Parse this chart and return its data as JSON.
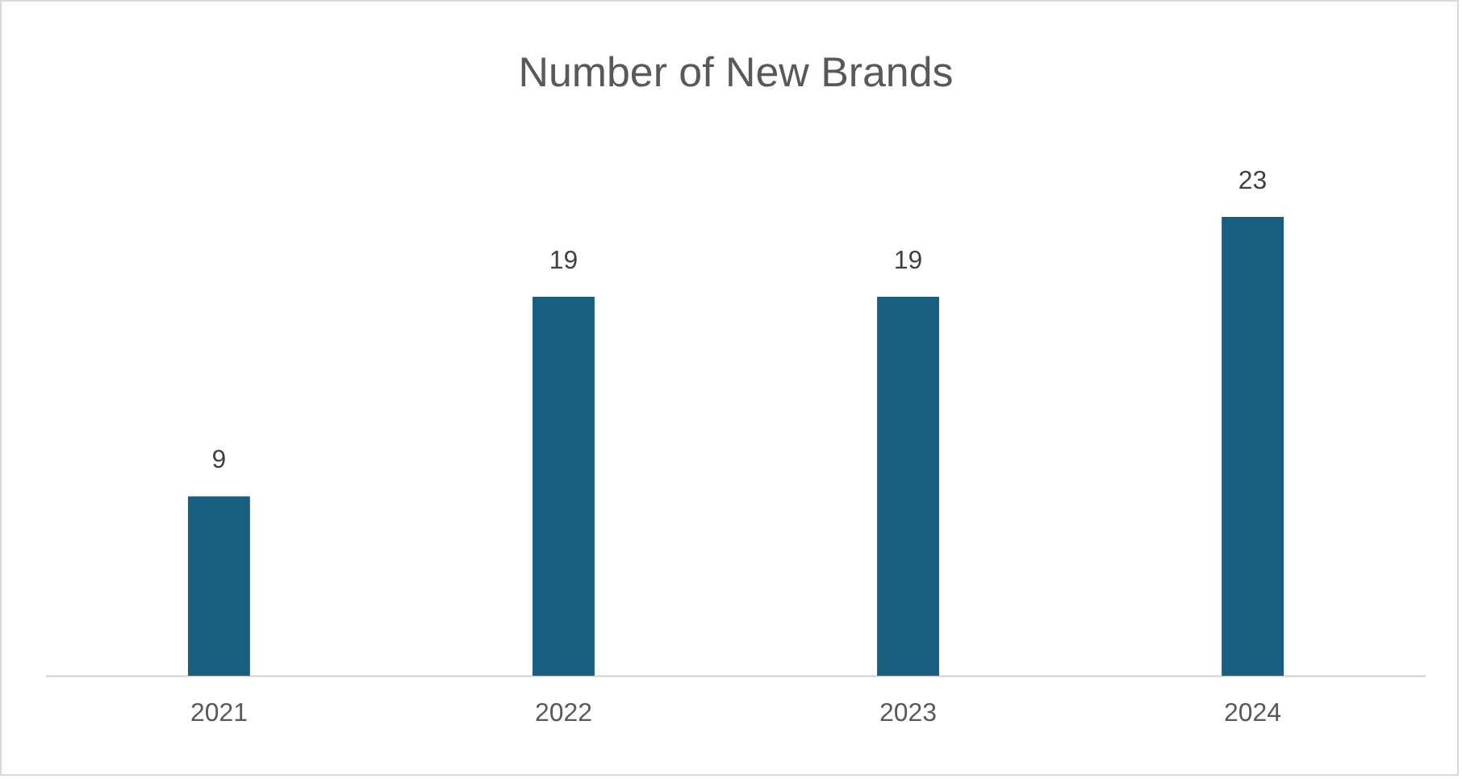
{
  "chart_data": {
    "type": "bar",
    "title": "Number of New Brands",
    "categories": [
      "2021",
      "2022",
      "2023",
      "2024"
    ],
    "values": [
      9,
      19,
      19,
      23
    ],
    "color": "#175e7f",
    "data_labels": true,
    "grid": false,
    "legend": false
  }
}
